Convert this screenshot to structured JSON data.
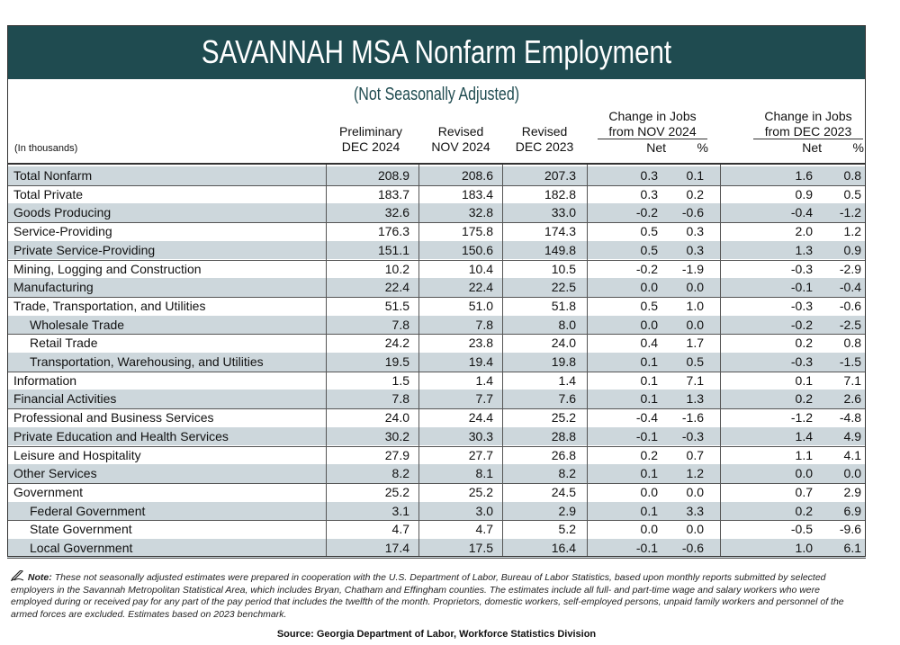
{
  "header": {
    "title": "SAVANNAH MSA Nonfarm Employment",
    "subtitle": "(Not Seasonally Adjusted)",
    "units": "(In thousands)",
    "columns": [
      [
        "Preliminary",
        "DEC 2024"
      ],
      [
        "Revised",
        "NOV 2024"
      ],
      [
        "Revised",
        "DEC 2023"
      ]
    ],
    "groups": [
      {
        "lines": [
          "Change in Jobs",
          "from NOV 2024"
        ],
        "sub": [
          "Net",
          "%"
        ]
      },
      {
        "lines": [
          "Change in Jobs",
          "from DEC 2023"
        ],
        "sub": [
          "Net",
          "%"
        ]
      }
    ]
  },
  "table": {
    "rows": [
      [
        "Total Nonfarm",
        "208.9",
        "208.6",
        "207.3",
        "0.3",
        "0.1",
        "1.6",
        "0.8"
      ],
      [
        "Total Private",
        "183.7",
        "183.4",
        "182.8",
        "0.3",
        "0.2",
        "0.9",
        "0.5"
      ],
      [
        "Goods Producing",
        "32.6",
        "32.8",
        "33.0",
        "-0.2",
        "-0.6",
        "-0.4",
        "-1.2"
      ],
      [
        "Service-Providing",
        "176.3",
        "175.8",
        "174.3",
        "0.5",
        "0.3",
        "2.0",
        "1.2"
      ],
      [
        "Private Service-Providing",
        "151.1",
        "150.6",
        "149.8",
        "0.5",
        "0.3",
        "1.3",
        "0.9"
      ],
      [
        "Mining, Logging and Construction",
        "10.2",
        "10.4",
        "10.5",
        "-0.2",
        "-1.9",
        "-0.3",
        "-2.9"
      ],
      [
        "Manufacturing",
        "22.4",
        "22.4",
        "22.5",
        "0.0",
        "0.0",
        "-0.1",
        "-0.4"
      ],
      [
        "Trade, Transportation, and Utilities",
        "51.5",
        "51.0",
        "51.8",
        "0.5",
        "1.0",
        "-0.3",
        "-0.6"
      ],
      [
        "Wholesale Trade",
        "7.8",
        "7.8",
        "8.0",
        "0.0",
        "0.0",
        "-0.2",
        "-2.5"
      ],
      [
        "Retail Trade",
        "24.2",
        "23.8",
        "24.0",
        "0.4",
        "1.7",
        "0.2",
        "0.8"
      ],
      [
        "Transportation, Warehousing, and Utilities",
        "19.5",
        "19.4",
        "19.8",
        "0.1",
        "0.5",
        "-0.3",
        "-1.5"
      ],
      [
        "Information",
        "1.5",
        "1.4",
        "1.4",
        "0.1",
        "7.1",
        "0.1",
        "7.1"
      ],
      [
        "Financial Activities",
        "7.8",
        "7.7",
        "7.6",
        "0.1",
        "1.3",
        "0.2",
        "2.6"
      ],
      [
        "Professional and Business Services",
        "24.0",
        "24.4",
        "25.2",
        "-0.4",
        "-1.6",
        "-1.2",
        "-4.8"
      ],
      [
        "Private Education and Health Services",
        "30.2",
        "30.3",
        "28.8",
        "-0.1",
        "-0.3",
        "1.4",
        "4.9"
      ],
      [
        "Leisure and Hospitality",
        "27.9",
        "27.7",
        "26.8",
        "0.2",
        "0.7",
        "1.1",
        "4.1"
      ],
      [
        "Other Services",
        "8.2",
        "8.1",
        "8.2",
        "0.1",
        "1.2",
        "0.0",
        "0.0"
      ],
      [
        "Government",
        "25.2",
        "25.2",
        "24.5",
        "0.0",
        "0.0",
        "0.7",
        "2.9"
      ],
      [
        "Federal Government",
        "3.1",
        "3.0",
        "2.9",
        "0.1",
        "3.3",
        "0.2",
        "6.9"
      ],
      [
        "State Government",
        "4.7",
        "4.7",
        "5.2",
        "0.0",
        "0.0",
        "-0.5",
        "-9.6"
      ],
      [
        "Local Government",
        "17.4",
        "17.5",
        "16.4",
        "-0.1",
        "-0.6",
        "1.0",
        "6.1"
      ]
    ]
  },
  "note": {
    "label": "Note:",
    "text": "These not seasonally adjusted estimates were prepared in cooperation with the U.S. Department of Labor, Bureau of Labor Statistics, based upon monthly reports submitted by selected employers in the Savannah Metropolitan Statistical Area, which includes Bryan, Chatham and Effingham counties.   The estimates include all full- and part-time wage and salary workers who were employed during or received pay for any part of the pay period that includes the twelfth of the month. Proprietors, domestic workers, self-employed persons, unpaid family workers and personnel of the armed forces are excluded. Estimates based on 2023 benchmark."
  },
  "source": "Source:  Georgia Department of Labor, Workforce Statistics Division"
}
